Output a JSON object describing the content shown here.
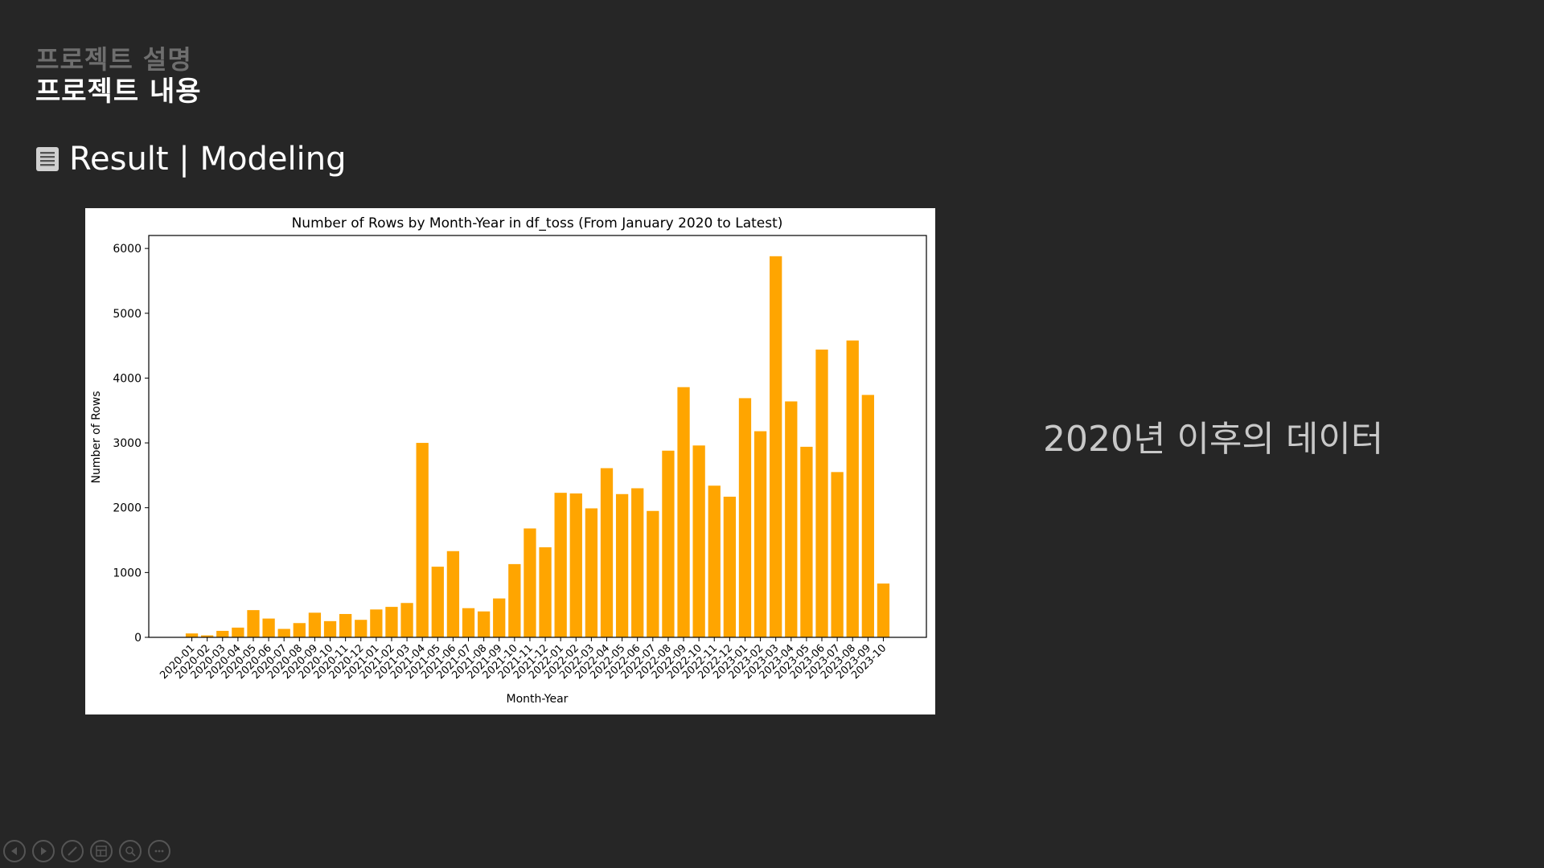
{
  "header": {
    "subtitle": "프로젝트 설명",
    "title": "프로젝트 내용"
  },
  "section": {
    "icon": "document-list-icon",
    "title": "Result | Modeling"
  },
  "caption": "2020년 이후의 데이터",
  "colors": {
    "background": "#262626",
    "bar": "#FFA500",
    "caption": "#c8c8c8"
  },
  "nav_icons": [
    "previous-icon",
    "next-icon",
    "pen-icon",
    "slides-grid-icon",
    "zoom-icon",
    "more-icon"
  ],
  "chart_data": {
    "type": "bar",
    "title": "Number of Rows by Month-Year in df_toss (From January 2020 to Latest)",
    "xlabel": "Month-Year",
    "ylabel": "Number of Rows",
    "ylim": [
      0,
      6200
    ],
    "yticks": [
      0,
      1000,
      2000,
      3000,
      4000,
      5000,
      6000
    ],
    "grid": false,
    "bar_color": "#FFA500",
    "categories": [
      "2020-01",
      "2020-02",
      "2020-03",
      "2020-04",
      "2020-05",
      "2020-06",
      "2020-07",
      "2020-08",
      "2020-09",
      "2020-10",
      "2020-11",
      "2020-12",
      "2021-01",
      "2021-02",
      "2021-03",
      "2021-04",
      "2021-05",
      "2021-06",
      "2021-07",
      "2021-08",
      "2021-09",
      "2021-10",
      "2021-11",
      "2021-12",
      "2022-01",
      "2022-02",
      "2022-03",
      "2022-04",
      "2022-05",
      "2022-06",
      "2022-07",
      "2022-08",
      "2022-09",
      "2022-10",
      "2022-11",
      "2022-12",
      "2023-01",
      "2023-02",
      "2023-03",
      "2023-04",
      "2023-05",
      "2023-06",
      "2023-07",
      "2023-08",
      "2023-09",
      "2023-10"
    ],
    "values": [
      60,
      30,
      100,
      150,
      420,
      290,
      130,
      220,
      380,
      250,
      360,
      270,
      430,
      470,
      530,
      3000,
      1090,
      1330,
      450,
      400,
      600,
      1130,
      1680,
      1390,
      2230,
      2220,
      1990,
      2610,
      2210,
      2300,
      1950,
      2880,
      3860,
      2960,
      2340,
      2170,
      3690,
      3180,
      5880,
      3640,
      2940,
      4440,
      2550,
      4580,
      3740,
      830
    ]
  }
}
